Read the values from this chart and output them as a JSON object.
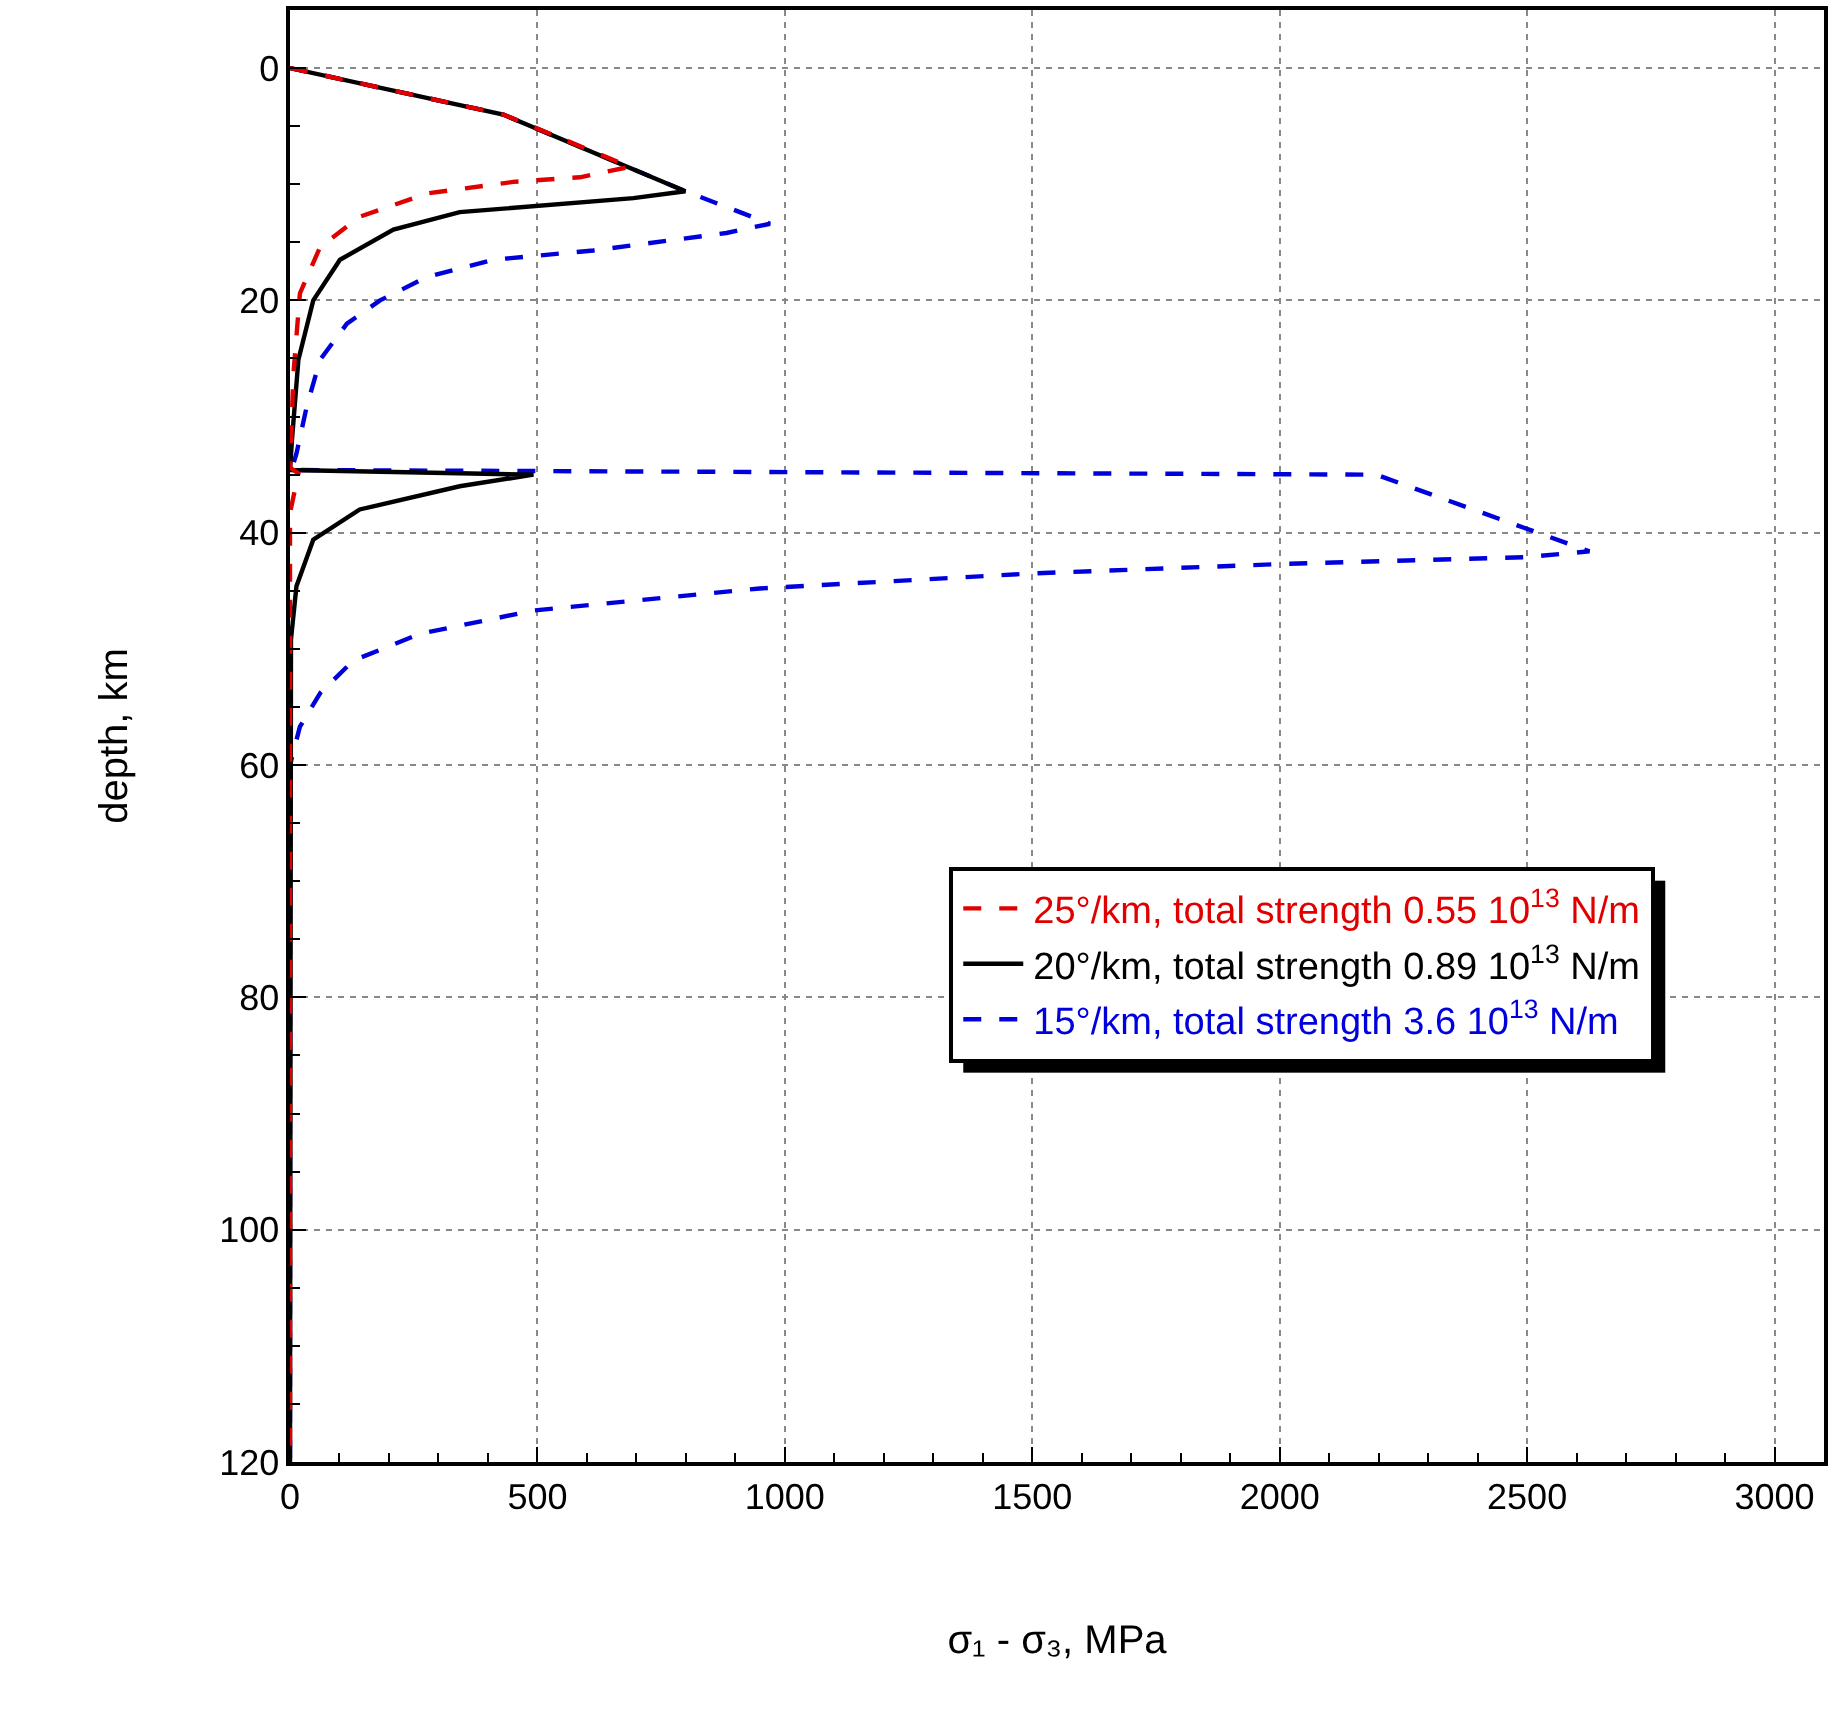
{
  "chart_data": {
    "type": "line",
    "xlabel": "σ₁ - σ₃, MPa",
    "ylabel": "depth, km",
    "xlim": [
      0,
      3100
    ],
    "xticks": [
      0,
      500,
      1000,
      1500,
      2000,
      2500,
      3000
    ],
    "ylim": [
      120,
      -5
    ],
    "yticks": [
      0,
      20,
      40,
      60,
      80,
      100,
      120
    ],
    "grid": true,
    "legend": "right",
    "series": [
      {
        "name": "25°/km, total strength 0.55 10$^{13}$ N/m",
        "color": "#e00000",
        "line_style": "dashed",
        "x": [
          0,
          431,
          687,
          586,
          451,
          276,
          141,
          61,
          20,
          7,
          0,
          17,
          0,
          0
        ],
        "values": [
          0,
          4.0,
          8.5,
          9.4,
          9.8,
          10.8,
          12.8,
          15.4,
          19.4,
          26.3,
          34.4,
          34.9,
          38.3,
          120
        ]
      },
      {
        "name": "20°/km, total strength 0.89 10$^{13}$ N/m",
        "color": "#000000",
        "line_style": "solid",
        "x": [
          0,
          431,
          799,
          694,
          343,
          209,
          101,
          47,
          17,
          4,
          0,
          492,
          343,
          141,
          47,
          13,
          2,
          0
        ],
        "values": [
          0,
          4.0,
          10.6,
          11.2,
          12.4,
          13.9,
          16.5,
          20,
          25.1,
          32,
          34.6,
          35.0,
          36.0,
          38.0,
          40.6,
          44.6,
          49.2,
          120
        ]
      },
      {
        "name": "15°/km, total strength 3.6 10$^{13}$ N/m",
        "color": "#0000dd",
        "line_style": "dashed",
        "x": [
          0,
          431,
          799,
          970,
          882,
          613,
          411,
          276,
          182,
          115,
          61,
          34,
          13,
          3,
          2195,
          2626,
          2498,
          2000,
          1502,
          949,
          492,
          263,
          128,
          61,
          20,
          0,
          0
        ],
        "values": [
          0,
          4.0,
          10.6,
          13.4,
          14.2,
          15.7,
          16.5,
          18.0,
          20,
          22,
          25.1,
          29.1,
          33.2,
          34.6,
          35.0,
          41.6,
          42.1,
          42.7,
          43.5,
          44.8,
          46.7,
          48.7,
          51,
          53.8,
          56.7,
          60,
          120
        ]
      }
    ]
  }
}
